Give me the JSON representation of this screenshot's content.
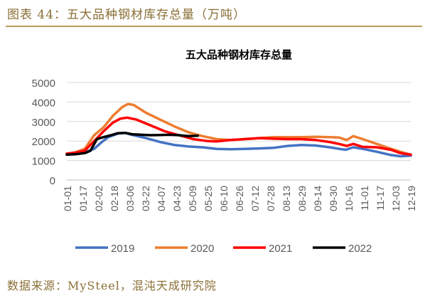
{
  "header": {
    "figure_title": "图表 44：五大品种钢材库存总量（万吨）",
    "source": "数据来源：MySteel，混沌天成研究院"
  },
  "colors": {
    "2019": "#4472C4",
    "2020": "#ED7D31",
    "2021": "#FF0000",
    "2022": "#000000",
    "grid": "#d9d9d9",
    "axis_text": "#595959"
  },
  "chart_data": {
    "type": "line",
    "title": "五大品种钢材库存总量",
    "xlabel": "",
    "ylabel": "",
    "ylim": [
      0,
      5000
    ],
    "yticks": [
      0,
      1000,
      2000,
      3000,
      4000,
      5000
    ],
    "grid": "horizontal",
    "legend": "bottom",
    "x_tick_labels": [
      "01-01",
      "01-17",
      "02-02",
      "02-18",
      "03-06",
      "03-22",
      "04-07",
      "04-23",
      "05-09",
      "05-25",
      "06-10",
      "06-26",
      "07-12",
      "07-28",
      "08-13",
      "08-29",
      "09-14",
      "09-30",
      "10-16",
      "11-01",
      "11-17",
      "12-03",
      "12-19"
    ],
    "x_range_days": [
      1,
      366
    ],
    "series": [
      {
        "name": "2019",
        "points": [
          [
            1,
            1350
          ],
          [
            10,
            1360
          ],
          [
            20,
            1420
          ],
          [
            30,
            1600
          ],
          [
            37,
            1900
          ],
          [
            45,
            2200
          ],
          [
            55,
            2380
          ],
          [
            62,
            2420
          ],
          [
            72,
            2300
          ],
          [
            85,
            2150
          ],
          [
            100,
            1950
          ],
          [
            115,
            1800
          ],
          [
            130,
            1720
          ],
          [
            145,
            1680
          ],
          [
            160,
            1600
          ],
          [
            175,
            1580
          ],
          [
            190,
            1600
          ],
          [
            205,
            1620
          ],
          [
            220,
            1650
          ],
          [
            235,
            1750
          ],
          [
            250,
            1800
          ],
          [
            265,
            1770
          ],
          [
            280,
            1680
          ],
          [
            290,
            1600
          ],
          [
            297,
            1550
          ],
          [
            305,
            1680
          ],
          [
            315,
            1600
          ],
          [
            330,
            1450
          ],
          [
            345,
            1280
          ],
          [
            355,
            1220
          ],
          [
            366,
            1250
          ]
        ]
      },
      {
        "name": "2020",
        "points": [
          [
            1,
            1350
          ],
          [
            10,
            1420
          ],
          [
            20,
            1600
          ],
          [
            30,
            2300
          ],
          [
            40,
            2700
          ],
          [
            50,
            3300
          ],
          [
            60,
            3750
          ],
          [
            66,
            3900
          ],
          [
            72,
            3850
          ],
          [
            85,
            3450
          ],
          [
            100,
            3100
          ],
          [
            115,
            2750
          ],
          [
            130,
            2450
          ],
          [
            145,
            2250
          ],
          [
            160,
            2100
          ],
          [
            175,
            2050
          ],
          [
            190,
            2100
          ],
          [
            205,
            2150
          ],
          [
            220,
            2200
          ],
          [
            235,
            2200
          ],
          [
            250,
            2200
          ],
          [
            265,
            2220
          ],
          [
            280,
            2200
          ],
          [
            290,
            2180
          ],
          [
            298,
            2050
          ],
          [
            305,
            2250
          ],
          [
            315,
            2100
          ],
          [
            330,
            1850
          ],
          [
            345,
            1600
          ],
          [
            355,
            1450
          ],
          [
            366,
            1300
          ]
        ]
      },
      {
        "name": "2021",
        "points": [
          [
            1,
            1350
          ],
          [
            10,
            1400
          ],
          [
            20,
            1500
          ],
          [
            30,
            2000
          ],
          [
            40,
            2500
          ],
          [
            50,
            2950
          ],
          [
            58,
            3150
          ],
          [
            65,
            3200
          ],
          [
            75,
            3100
          ],
          [
            90,
            2800
          ],
          [
            105,
            2500
          ],
          [
            120,
            2300
          ],
          [
            135,
            2100
          ],
          [
            150,
            2000
          ],
          [
            160,
            1980
          ],
          [
            175,
            2050
          ],
          [
            190,
            2100
          ],
          [
            205,
            2150
          ],
          [
            220,
            2120
          ],
          [
            235,
            2100
          ],
          [
            250,
            2100
          ],
          [
            265,
            2050
          ],
          [
            280,
            1950
          ],
          [
            290,
            1850
          ],
          [
            298,
            1750
          ],
          [
            305,
            1850
          ],
          [
            315,
            1700
          ],
          [
            330,
            1680
          ],
          [
            345,
            1550
          ],
          [
            355,
            1380
          ],
          [
            366,
            1300
          ]
        ]
      },
      {
        "name": "2022",
        "points": [
          [
            1,
            1300
          ],
          [
            10,
            1320
          ],
          [
            20,
            1380
          ],
          [
            26,
            1500
          ],
          [
            33,
            2100
          ],
          [
            40,
            2200
          ],
          [
            48,
            2300
          ],
          [
            55,
            2400
          ],
          [
            63,
            2420
          ],
          [
            70,
            2350
          ],
          [
            80,
            2320
          ],
          [
            90,
            2300
          ],
          [
            100,
            2310
          ],
          [
            110,
            2320
          ],
          [
            120,
            2300
          ],
          [
            130,
            2250
          ],
          [
            140,
            2270
          ]
        ]
      }
    ]
  }
}
